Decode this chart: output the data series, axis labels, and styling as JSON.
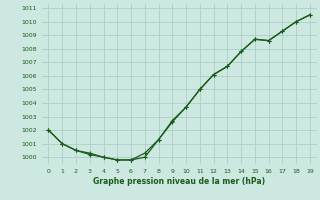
{
  "title": "Graphe pression niveau de la mer (hPa)",
  "x": [
    0,
    1,
    2,
    3,
    4,
    5,
    6,
    7,
    8,
    9,
    10,
    11,
    12,
    13,
    14,
    15,
    16,
    17,
    18,
    19
  ],
  "y_line1": [
    1002,
    1001,
    1000.5,
    1000.3,
    1000.0,
    999.8,
    999.8,
    1000.3,
    1001.3,
    1002.7,
    1003.7,
    1005.0,
    1006.1,
    1006.7,
    1007.8,
    1008.7,
    1008.6,
    1009.3,
    1010.0,
    1010.5
  ],
  "y_line2": [
    1002,
    1001,
    1000.5,
    1000.2,
    1000.0,
    999.8,
    999.8,
    1000.0,
    1001.3,
    1002.6,
    1003.7,
    1005.0,
    1006.1,
    1006.7,
    1007.8,
    1008.7,
    1008.6,
    1009.3,
    1010.0,
    1010.5
  ],
  "line_color": "#1a5c1a",
  "bg_color": "#cce8e0",
  "grid_color": "#aacfc8",
  "text_color": "#1a5c1a",
  "ylim": [
    999.5,
    1011.3
  ],
  "xlim": [
    -0.5,
    19.5
  ],
  "yticks": [
    1000,
    1001,
    1002,
    1003,
    1004,
    1005,
    1006,
    1007,
    1008,
    1009,
    1010,
    1011
  ],
  "xticks": [
    0,
    1,
    2,
    3,
    4,
    5,
    6,
    7,
    8,
    9,
    10,
    11,
    12,
    13,
    14,
    15,
    16,
    17,
    18,
    19
  ],
  "tick_fontsize": 4.5,
  "xlabel_fontsize": 5.5
}
